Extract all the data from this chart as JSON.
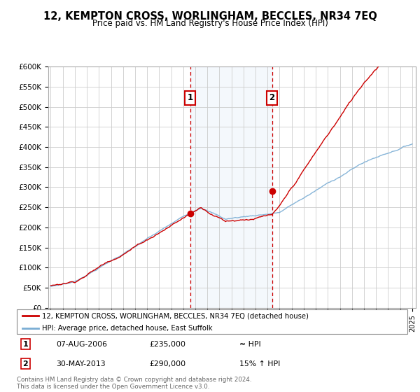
{
  "title": "12, KEMPTON CROSS, WORLINGHAM, BECCLES, NR34 7EQ",
  "subtitle": "Price paid vs. HM Land Registry's House Price Index (HPI)",
  "ylabel_ticks": [
    "£0",
    "£50K",
    "£100K",
    "£150K",
    "£200K",
    "£250K",
    "£300K",
    "£350K",
    "£400K",
    "£450K",
    "£500K",
    "£550K",
    "£600K"
  ],
  "ytick_values": [
    0,
    50000,
    100000,
    150000,
    200000,
    250000,
    300000,
    350000,
    400000,
    450000,
    500000,
    550000,
    600000
  ],
  "ylim": [
    0,
    600000
  ],
  "xlim_start": 1995.0,
  "xlim_end": 2025.3,
  "hpi_color": "#7aadd4",
  "price_color": "#cc0000",
  "sale1_x": 2006.58,
  "sale1_y": 235000,
  "sale2_x": 2013.37,
  "sale2_y": 290000,
  "vline1_x": 2006.58,
  "vline2_x": 2013.37,
  "shade_start": 2006.58,
  "shade_end": 2013.37,
  "legend_price_label": "12, KEMPTON CROSS, WORLINGHAM, BECCLES, NR34 7EQ (detached house)",
  "legend_hpi_label": "HPI: Average price, detached house, East Suffolk",
  "annotation1_num": "1",
  "annotation2_num": "2",
  "table_row1": [
    "1",
    "07-AUG-2006",
    "£235,000",
    "≈ HPI"
  ],
  "table_row2": [
    "2",
    "30-MAY-2013",
    "£290,000",
    "15% ↑ HPI"
  ],
  "footer": "Contains HM Land Registry data © Crown copyright and database right 2024.\nThis data is licensed under the Open Government Licence v3.0.",
  "background_color": "#ffffff"
}
